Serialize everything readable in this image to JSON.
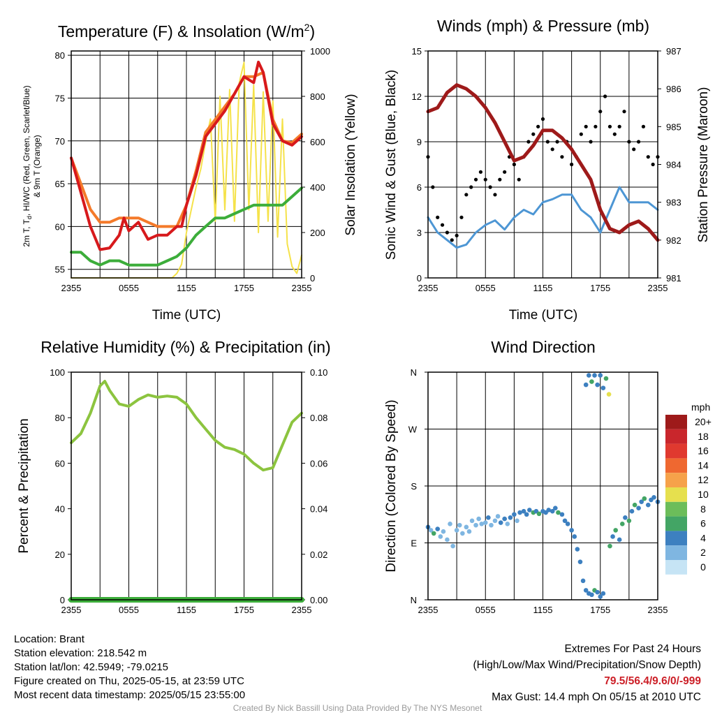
{
  "panels": {
    "temp": {
      "title": "Temperature (F) & Insolation (W/m²)",
      "title_main": "Temperature (F) & Insolation (W/m",
      "title_sup": "2",
      "title_close": ")",
      "xlabel": "Time (UTC)",
      "ylabel_left_line1": "2m T, T",
      "ylabel_left_sub": "d",
      "ylabel_left_line1b": ", HI/WC (Red, Green, Scarlet/Blue)",
      "ylabel_left_line2": "& 9m T (Orange)",
      "ylabel_right": "Solar Insolation (Yellow)"
    },
    "wind": {
      "title": "Winds (mph) & Pressure (mb)",
      "xlabel": "Time (UTC)",
      "ylabel_left": "Sonic Wind & Gust (Blue, Black)",
      "ylabel_right": "Station Pressure (Maroon)"
    },
    "rh": {
      "title": "Relative Humidity (%) & Precipitation (in)",
      "ylabel_left": "Percent & Precipitation"
    },
    "wdir": {
      "title": "Wind Direction",
      "ylabel_left": "Direction (Colored By Speed)",
      "legend_title": "mph"
    }
  },
  "chart_data": [
    {
      "id": "temp",
      "type": "line",
      "x_ticks": [
        "2355",
        "0555",
        "1155",
        "1755",
        "2355"
      ],
      "y_left": {
        "range": [
          54,
          80.5
        ],
        "ticks": [
          "55",
          "60",
          "65",
          "70",
          "75",
          "80"
        ]
      },
      "y_right": {
        "range": [
          0,
          1000
        ],
        "ticks": [
          "0",
          "200",
          "400",
          "600",
          "800",
          "1000"
        ]
      },
      "grid": true,
      "series": [
        {
          "color": "#d7191c",
          "axis": "left",
          "x": [
            0,
            1,
            2,
            3,
            4,
            5,
            5.5,
            6,
            7,
            8,
            9,
            10,
            11,
            11.5,
            12,
            13,
            14,
            15,
            16,
            17,
            18,
            19,
            19.5,
            20,
            21,
            22,
            23,
            24
          ],
          "y": [
            68,
            64,
            60,
            57.3,
            57.5,
            59,
            61,
            59.5,
            60.5,
            58.5,
            59,
            59,
            60,
            60,
            62.5,
            66,
            70.5,
            72,
            73.5,
            75.5,
            77.5,
            76.8,
            79.2,
            78,
            72,
            70,
            69.5,
            70.5
          ]
        },
        {
          "color": "#f47a2a",
          "axis": "left",
          "x": [
            0,
            1,
            2,
            3,
            4,
            5,
            6,
            7,
            8,
            9,
            10,
            11,
            12,
            13,
            14,
            15,
            16,
            17,
            18,
            19,
            20,
            21,
            22,
            23,
            24
          ],
          "y": [
            68,
            65,
            62,
            60.5,
            60.5,
            61,
            61,
            61,
            60.5,
            60,
            60,
            60,
            62.5,
            66.5,
            71,
            72.5,
            74,
            75.5,
            77.5,
            77.5,
            78,
            72.5,
            70,
            69.8,
            70.8
          ]
        },
        {
          "color": "#3cad3a",
          "axis": "left",
          "x": [
            0,
            1,
            2,
            3,
            4,
            5,
            6,
            7,
            8,
            9,
            10,
            11,
            12,
            13,
            14,
            15,
            16,
            17,
            18,
            19,
            20,
            21,
            22,
            23,
            24
          ],
          "y": [
            57,
            57,
            56,
            55.5,
            56,
            56,
            55.5,
            55.5,
            55.5,
            55.5,
            56,
            56.5,
            57.5,
            59,
            60,
            61,
            61,
            61.5,
            62,
            62.5,
            62.5,
            62.5,
            62.5,
            63.5,
            64.5
          ]
        },
        {
          "color": "#f5e24a",
          "axis": "right",
          "x": [
            0,
            1,
            2,
            3,
            4,
            5,
            6,
            7,
            8,
            9,
            10,
            10.5,
            11,
            11.5,
            12,
            12.5,
            13,
            13.5,
            14,
            14.5,
            15,
            15.5,
            16,
            16.5,
            17,
            17.5,
            18,
            18.5,
            19,
            19.5,
            20,
            20.5,
            21,
            21.5,
            22,
            22.5,
            23,
            23.5,
            24
          ],
          "y": [
            0,
            0,
            0,
            0,
            0,
            0,
            0,
            0,
            0,
            0,
            0,
            0,
            20,
            60,
            200,
            300,
            400,
            480,
            600,
            700,
            250,
            800,
            300,
            830,
            250,
            860,
            950,
            300,
            850,
            200,
            820,
            250,
            780,
            180,
            700,
            150,
            50,
            20,
            100
          ]
        }
      ]
    },
    {
      "id": "wind",
      "type": "line",
      "x_ticks": [
        "2355",
        "0555",
        "1155",
        "1755",
        "2355"
      ],
      "y_left": {
        "range": [
          0,
          15
        ],
        "ticks": [
          "0",
          "3",
          "6",
          "9",
          "12",
          "15"
        ]
      },
      "y_right": {
        "range": [
          981,
          987
        ],
        "ticks": [
          "981",
          "982",
          "983",
          "984",
          "985",
          "986",
          "987"
        ]
      },
      "grid": true,
      "series": [
        {
          "color": "#9e1a1a",
          "axis": "right",
          "x": [
            0,
            1,
            2,
            3,
            4,
            5,
            6,
            7,
            8,
            9,
            10,
            11,
            12,
            13,
            14,
            15,
            16,
            17,
            18,
            19,
            20,
            21,
            22,
            23,
            24
          ],
          "y": [
            985.4,
            985.5,
            985.9,
            986.1,
            986.0,
            985.8,
            985.5,
            985.1,
            984.6,
            984.1,
            984.2,
            984.5,
            984.9,
            984.9,
            984.7,
            984.4,
            984.0,
            983.6,
            982.8,
            982.3,
            982.2,
            982.4,
            982.5,
            982.3,
            982.0
          ]
        },
        {
          "color": "#4d96d4",
          "axis": "left",
          "x": [
            0,
            1,
            2,
            3,
            4,
            5,
            6,
            7,
            8,
            9,
            10,
            11,
            12,
            13,
            14,
            15,
            16,
            17,
            18,
            19,
            20,
            21,
            22,
            23,
            24
          ],
          "y": [
            4,
            3,
            2.5,
            2,
            2.2,
            3,
            3.5,
            3.8,
            3.2,
            4,
            4.5,
            4.2,
            5,
            5.2,
            5.5,
            5.5,
            4.5,
            4,
            3,
            4.5,
            6,
            5,
            5,
            5,
            4.5
          ]
        },
        {
          "color": "#000000",
          "axis": "left",
          "type": "scatter",
          "x": [
            0,
            0.5,
            1,
            1.5,
            2,
            2.5,
            3,
            3.5,
            4,
            4.5,
            5,
            5.5,
            6,
            6.5,
            7,
            7.5,
            8,
            8.5,
            9,
            9.5,
            10,
            10.5,
            11,
            11.5,
            12,
            12.5,
            13,
            13.5,
            14,
            14.5,
            15,
            15.5,
            16,
            16.5,
            17,
            17.5,
            18,
            18.5,
            19,
            19.5,
            20,
            20.5,
            21,
            21.5,
            22,
            22.5,
            23,
            23.5,
            24
          ],
          "y": [
            8,
            6,
            4,
            3.5,
            3,
            2.5,
            2.8,
            4,
            5.5,
            6,
            6.5,
            7,
            6.5,
            6,
            5.5,
            6.5,
            7,
            8,
            7.5,
            6.5,
            8,
            9,
            9.5,
            10,
            10.5,
            9,
            8.5,
            9,
            8,
            9,
            7.5,
            8,
            9.5,
            10,
            9,
            10,
            11,
            12,
            10,
            9.5,
            10,
            11,
            9,
            8.5,
            9,
            10,
            8,
            7.5,
            8
          ]
        }
      ]
    },
    {
      "id": "rh",
      "type": "line",
      "x_ticks": [
        "2355",
        "0555",
        "1155",
        "1755",
        "2355"
      ],
      "y_left": {
        "range": [
          0,
          100
        ],
        "ticks": [
          "0",
          "20",
          "40",
          "60",
          "80",
          "100"
        ]
      },
      "y_right": {
        "range": [
          0,
          0.1
        ],
        "ticks": [
          "0.00",
          "0.02",
          "0.04",
          "0.06",
          "0.08",
          "0.10"
        ]
      },
      "grid": true,
      "series": [
        {
          "color": "#8cc43f",
          "axis": "left",
          "x": [
            0,
            1,
            2,
            3,
            3.5,
            4,
            5,
            6,
            7,
            8,
            9,
            10,
            11,
            12,
            13,
            14,
            15,
            16,
            17,
            18,
            19,
            20,
            21,
            22,
            23,
            24
          ],
          "y": [
            69,
            73,
            82,
            94,
            96,
            92,
            86,
            85,
            88,
            90,
            89,
            89.5,
            89,
            86,
            80,
            75,
            70,
            67,
            66,
            64,
            60,
            57,
            58,
            68,
            78,
            82
          ]
        },
        {
          "color": "#3cad3a",
          "axis": "right",
          "x": [
            0,
            24
          ],
          "y": [
            0,
            0
          ]
        }
      ]
    },
    {
      "id": "wdir",
      "type": "scatter",
      "x_ticks": [
        "2355",
        "0555",
        "1155",
        "1755",
        "2355"
      ],
      "y_ticks": [
        "N",
        "E",
        "S",
        "W",
        "N"
      ],
      "y_range_deg": [
        0,
        360
      ],
      "grid": true,
      "legend": {
        "labels": [
          "20+",
          "18",
          "16",
          "14",
          "12",
          "10",
          "8",
          "6",
          "4",
          "2",
          "0"
        ],
        "colors": [
          "#9e1a1a",
          "#c9262c",
          "#e0392f",
          "#ef6830",
          "#f6a24a",
          "#e6e04e",
          "#6cbd5a",
          "#43a565",
          "#3d80c0",
          "#7fb6e1",
          "#c6e4f5"
        ]
      },
      "points": [
        {
          "x": 0,
          "y": 115,
          "s": 3
        },
        {
          "x": 0.3,
          "y": 110,
          "s": 2
        },
        {
          "x": 0.6,
          "y": 105,
          "s": 6
        },
        {
          "x": 1,
          "y": 112,
          "s": 4
        },
        {
          "x": 1.3,
          "y": 100,
          "s": 2
        },
        {
          "x": 1.6,
          "y": 108,
          "s": 1
        },
        {
          "x": 2,
          "y": 95,
          "s": 1
        },
        {
          "x": 2.3,
          "y": 120,
          "s": 2
        },
        {
          "x": 2.6,
          "y": 85,
          "s": 1
        },
        {
          "x": 3,
          "y": 110,
          "s": 1
        },
        {
          "x": 3.3,
          "y": 118,
          "s": 2
        },
        {
          "x": 3.6,
          "y": 105,
          "s": 1
        },
        {
          "x": 4,
          "y": 115,
          "s": 2
        },
        {
          "x": 4.3,
          "y": 108,
          "s": 1
        },
        {
          "x": 4.6,
          "y": 125,
          "s": 2
        },
        {
          "x": 5,
          "y": 118,
          "s": 2
        },
        {
          "x": 5.3,
          "y": 128,
          "s": 2
        },
        {
          "x": 5.6,
          "y": 120,
          "s": 1
        },
        {
          "x": 6,
          "y": 122,
          "s": 2
        },
        {
          "x": 6.3,
          "y": 130,
          "s": 3
        },
        {
          "x": 6.6,
          "y": 118,
          "s": 2
        },
        {
          "x": 7,
          "y": 125,
          "s": 2
        },
        {
          "x": 7.3,
          "y": 132,
          "s": 2
        },
        {
          "x": 7.6,
          "y": 122,
          "s": 3
        },
        {
          "x": 8,
          "y": 128,
          "s": 3
        },
        {
          "x": 8.3,
          "y": 120,
          "s": 2
        },
        {
          "x": 8.6,
          "y": 130,
          "s": 3
        },
        {
          "x": 9,
          "y": 135,
          "s": 3
        },
        {
          "x": 9.3,
          "y": 125,
          "s": 2
        },
        {
          "x": 9.6,
          "y": 138,
          "s": 4
        },
        {
          "x": 10,
          "y": 140,
          "s": 4
        },
        {
          "x": 10.3,
          "y": 135,
          "s": 4
        },
        {
          "x": 10.6,
          "y": 142,
          "s": 4
        },
        {
          "x": 11,
          "y": 138,
          "s": 6
        },
        {
          "x": 11.3,
          "y": 140,
          "s": 4
        },
        {
          "x": 11.6,
          "y": 136,
          "s": 6
        },
        {
          "x": 12,
          "y": 140,
          "s": 4
        },
        {
          "x": 12.3,
          "y": 138,
          "s": 4
        },
        {
          "x": 12.6,
          "y": 142,
          "s": 4
        },
        {
          "x": 13,
          "y": 140,
          "s": 4
        },
        {
          "x": 13.3,
          "y": 145,
          "s": 4
        },
        {
          "x": 13.6,
          "y": 138,
          "s": 6
        },
        {
          "x": 14,
          "y": 135,
          "s": 4
        },
        {
          "x": 14.3,
          "y": 125,
          "s": 4
        },
        {
          "x": 14.6,
          "y": 120,
          "s": 4
        },
        {
          "x": 15,
          "y": 110,
          "s": 4
        },
        {
          "x": 15.3,
          "y": 100,
          "s": 4
        },
        {
          "x": 15.6,
          "y": 80,
          "s": 4
        },
        {
          "x": 15.9,
          "y": 60,
          "s": 4
        },
        {
          "x": 16.2,
          "y": 30,
          "s": 4
        },
        {
          "x": 16.5,
          "y": 15,
          "s": 4
        },
        {
          "x": 16.8,
          "y": 10,
          "s": 4
        },
        {
          "x": 17.1,
          "y": 8,
          "s": 4
        },
        {
          "x": 17.4,
          "y": 15,
          "s": 6
        },
        {
          "x": 17.7,
          "y": 12,
          "s": 4
        },
        {
          "x": 18,
          "y": 5,
          "s": 4
        },
        {
          "x": 18.3,
          "y": 10,
          "s": 4
        },
        {
          "x": 16.5,
          "y": 340,
          "s": 4
        },
        {
          "x": 16.8,
          "y": 355,
          "s": 4
        },
        {
          "x": 17.1,
          "y": 345,
          "s": 6
        },
        {
          "x": 17.4,
          "y": 355,
          "s": 4
        },
        {
          "x": 17.7,
          "y": 340,
          "s": 4
        },
        {
          "x": 18,
          "y": 355,
          "s": 4
        },
        {
          "x": 18.3,
          "y": 335,
          "s": 4
        },
        {
          "x": 18.6,
          "y": 350,
          "s": 6
        },
        {
          "x": 18.9,
          "y": 325,
          "s": 10
        },
        {
          "x": 19,
          "y": 85,
          "s": 6
        },
        {
          "x": 19.3,
          "y": 100,
          "s": 4
        },
        {
          "x": 19.6,
          "y": 110,
          "s": 6
        },
        {
          "x": 20,
          "y": 95,
          "s": 4
        },
        {
          "x": 20.3,
          "y": 120,
          "s": 6
        },
        {
          "x": 20.6,
          "y": 130,
          "s": 4
        },
        {
          "x": 21,
          "y": 125,
          "s": 6
        },
        {
          "x": 21.3,
          "y": 140,
          "s": 4
        },
        {
          "x": 21.6,
          "y": 150,
          "s": 6
        },
        {
          "x": 22,
          "y": 145,
          "s": 4
        },
        {
          "x": 22.3,
          "y": 155,
          "s": 4
        },
        {
          "x": 22.6,
          "y": 160,
          "s": 6
        },
        {
          "x": 23,
          "y": 150,
          "s": 4
        },
        {
          "x": 23.3,
          "y": 158,
          "s": 4
        },
        {
          "x": 23.6,
          "y": 162,
          "s": 4
        },
        {
          "x": 24,
          "y": 155,
          "s": 4
        }
      ]
    }
  ],
  "footer": {
    "location": "Location: Brant",
    "elevation": "Station elevation: 218.542 m",
    "latlon": "Station lat/lon: 42.5949; -79.0215",
    "created": "Figure created on Thu, 2025-05-15, at 23:59 UTC",
    "recent": "Most recent data timestamp: 2025/05/15 23:55:00",
    "extremes_title": "Extremes For Past 24 Hours",
    "extremes_sub": "(High/Low/Max Wind/Precipitation/Snow Depth)",
    "extremes_values": "79.5/56.4/9.6/0/-999",
    "max_gust": "Max Gust: 14.4 mph On 05/15 at 2010 UTC",
    "credit": "Created By Nick Bassill Using Data Provided By The NYS Mesonet"
  }
}
